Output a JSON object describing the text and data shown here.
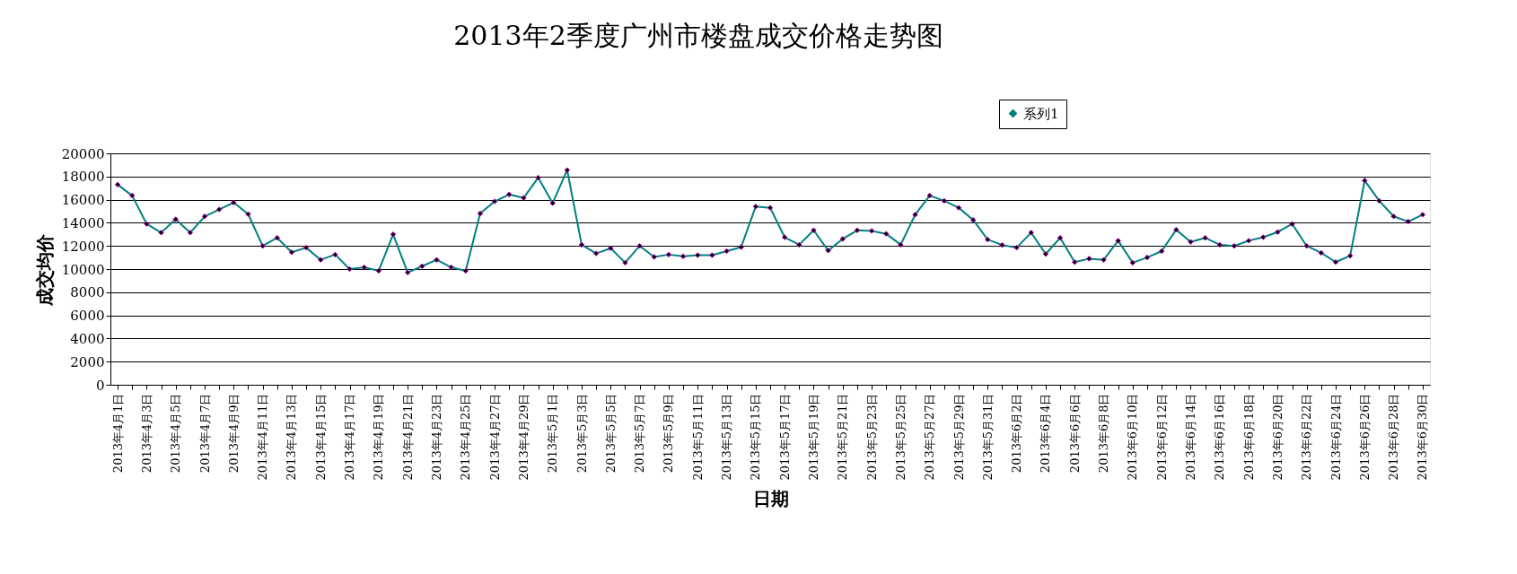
{
  "chart_data": {
    "type": "line",
    "title": "2013年2季度广州市楼盘成交价格走势图",
    "xlabel": "日期",
    "ylabel": "成交均价",
    "categories": [
      "2013年4月1日",
      null,
      "2013年4月3日",
      null,
      "2013年4月5日",
      null,
      "2013年4月7日",
      null,
      "2013年4月9日",
      null,
      "2013年4月11日",
      null,
      "2013年4月13日",
      null,
      "2013年4月15日",
      null,
      "2013年4月17日",
      null,
      "2013年4月19日",
      null,
      "2013年4月21日",
      null,
      "2013年4月23日",
      null,
      "2013年4月25日",
      null,
      "2013年4月27日",
      null,
      "2013年4月29日",
      null,
      "2013年5月1日",
      null,
      "2013年5月3日",
      null,
      "2013年5月5日",
      null,
      "2013年5月7日",
      null,
      "2013年5月9日",
      null,
      "2013年5月11日",
      null,
      "2013年5月13日",
      null,
      "2013年5月15日",
      null,
      "2013年5月17日",
      null,
      "2013年5月19日",
      null,
      "2013年5月21日",
      null,
      "2013年5月23日",
      null,
      "2013年5月25日",
      null,
      "2013年5月27日",
      null,
      "2013年5月29日",
      null,
      "2013年5月31日",
      null,
      "2013年6月2日",
      null,
      "2013年6月4日",
      null,
      "2013年6月6日",
      null,
      "2013年6月8日",
      null,
      "2013年6月10日",
      null,
      "2013年6月12日",
      null,
      "2013年6月14日",
      null,
      "2013年6月16日",
      null,
      "2013年6月18日",
      null,
      "2013年6月20日",
      null,
      "2013年6月22日",
      null,
      "2013年6月24日",
      null,
      "2013年6月26日",
      null,
      "2013年6月28日",
      null,
      "2013年6月30日"
    ],
    "series": [
      {
        "name": "系列1",
        "color": "#008080",
        "values": [
          17300,
          16350,
          13900,
          13150,
          14300,
          13150,
          14550,
          15150,
          15750,
          14750,
          12000,
          12700,
          11450,
          11850,
          10800,
          11250,
          10000,
          10150,
          9850,
          13000,
          9700,
          10250,
          10800,
          10150,
          9850,
          14800,
          15850,
          16450,
          16150,
          17900,
          15700,
          18550,
          12100,
          11350,
          11800,
          10550,
          12000,
          11050,
          11250,
          11100,
          11200,
          11200,
          11550,
          11900,
          15400,
          15300,
          12750,
          12100,
          13350,
          11600,
          12600,
          13350,
          13300,
          13050,
          12100,
          14700,
          16350,
          15900,
          15300,
          14250,
          12550,
          12080,
          11850,
          13150,
          11300,
          12700,
          10600,
          10900,
          10800,
          12450,
          10550,
          11000,
          11550,
          13400,
          12350,
          12700,
          12100,
          12000,
          12450,
          12750,
          13200,
          13900,
          12000,
          11400,
          10600,
          11150,
          17650,
          15900,
          14550,
          14100,
          14700
        ]
      }
    ],
    "ylim": [
      0,
      20000
    ],
    "yticks": [
      0,
      2000,
      4000,
      6000,
      8000,
      10000,
      12000,
      14000,
      16000,
      18000,
      20000
    ],
    "grid": "y",
    "legend": "top right",
    "marker": "diamond",
    "line_style": "solid"
  }
}
